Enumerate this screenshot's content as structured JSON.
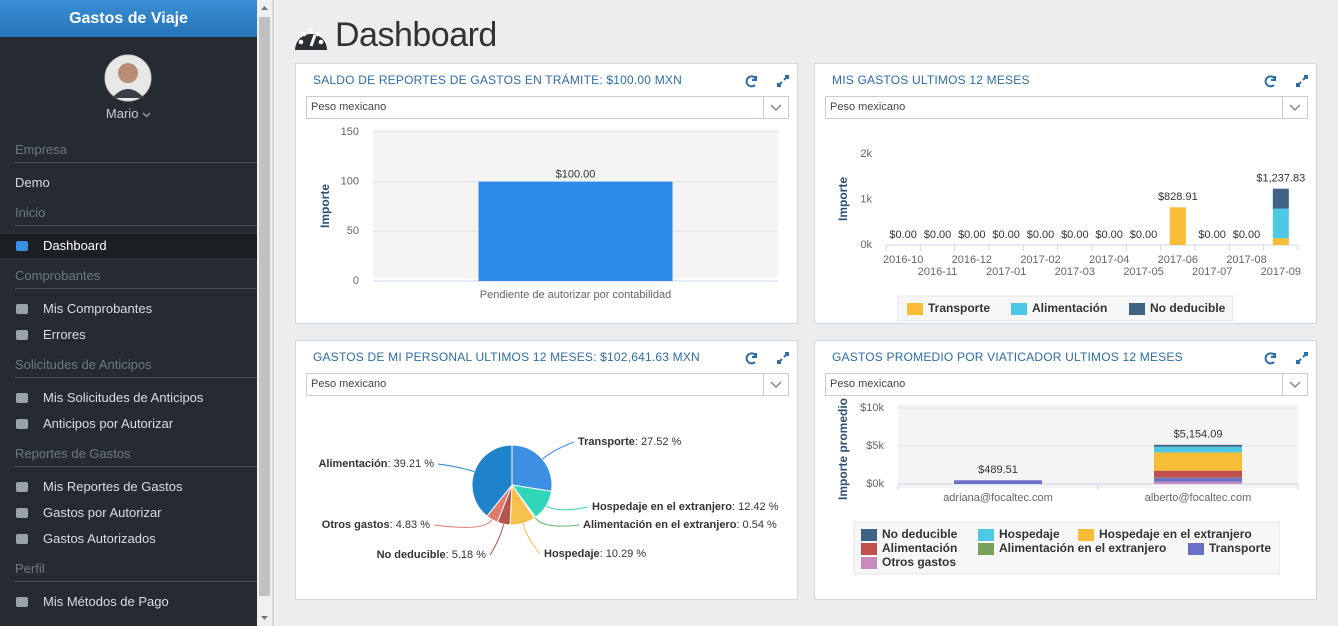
{
  "sidebar": {
    "app_title": "Gastos de Viaje",
    "user": "Mario",
    "sections": [
      {
        "header": "Empresa",
        "items": [
          "Demo"
        ]
      },
      {
        "header": "Inicio",
        "items": [
          "Dashboard"
        ]
      },
      {
        "header": "Comprobantes",
        "items": [
          "Mis Comprobantes",
          "Errores"
        ]
      },
      {
        "header": "Solicitudes de Anticipos",
        "items": [
          "Mis Solicitudes de Anticipos",
          "Anticipos por Autorizar"
        ]
      },
      {
        "header": "Reportes de Gastos",
        "items": [
          "Mis Reportes de Gastos",
          "Gastos por Autorizar",
          "Gastos Autorizados"
        ]
      },
      {
        "header": "Perfil",
        "items": [
          "Mis Métodos de Pago"
        ]
      }
    ]
  },
  "page_title": "Dashboard",
  "panels": [
    {
      "title": "SALDO DE REPORTES DE GASTOS EN TRÁMITE: $100.00 MXN",
      "currency": "Peso mexicano",
      "chart_data": {
        "type": "bar",
        "ylabel": "Importe",
        "categories": [
          "Pendiente de autorizar por contabilidad"
        ],
        "values": [
          100
        ],
        "value_labels": [
          "$100.00"
        ],
        "color": "#2d8ae8",
        "ylim": [
          0,
          150
        ],
        "yticks": [
          0,
          50,
          100,
          150
        ],
        "grid": true
      }
    },
    {
      "title": "MIS GASTOS ULTIMOS 12 MESES",
      "currency": "Peso mexicano",
      "chart_data": {
        "type": "bar",
        "stacked": true,
        "ylabel": "Importe",
        "categories": [
          "2016-10",
          "2016-11",
          "2016-12",
          "2017-01",
          "2017-02",
          "2017-03",
          "2017-04",
          "2017-05",
          "2017-06",
          "2017-07",
          "2017-08",
          "2017-09"
        ],
        "series": [
          {
            "name": "Transporte",
            "color": "#f7bd36",
            "values": [
              0,
              0,
              0,
              0,
              0,
              0,
              0,
              0,
              828.91,
              0,
              0,
              150
            ]
          },
          {
            "name": "Alimentación",
            "color": "#4fc8e6",
            "values": [
              0,
              0,
              0,
              0,
              0,
              0,
              0,
              0,
              0,
              0,
              0,
              650
            ]
          },
          {
            "name": "No deducible",
            "color": "#3f6384",
            "values": [
              0,
              0,
              0,
              0,
              0,
              0,
              0,
              0,
              0,
              0,
              0,
              437.83
            ]
          }
        ],
        "totals": [
          0,
          0,
          0,
          0,
          0,
          0,
          0,
          0,
          828.91,
          0,
          0,
          1237.83
        ],
        "total_labels": [
          "$0.00",
          "$0.00",
          "$0.00",
          "$0.00",
          "$0.00",
          "$0.00",
          "$0.00",
          "$0.00",
          "$828.91",
          "$0.00",
          "$0.00",
          "$1,237.83"
        ],
        "ylim": [
          0,
          2000
        ],
        "yticks": [
          {
            "value": 0,
            "label": "0k"
          },
          {
            "value": 1000,
            "label": "1k"
          },
          {
            "value": 2000,
            "label": "2k"
          }
        ],
        "grid": false,
        "legend": "bottom"
      }
    },
    {
      "title": "GASTOS DE MI PERSONAL ULTIMOS 12 MESES: $102,641.63 MXN",
      "currency": "Peso mexicano",
      "chart_data": {
        "type": "pie",
        "categories": [
          "Transporte",
          "Hospedaje en el extranjero",
          "Alimentación en el extranjero",
          "Hospedaje",
          "No deducible",
          "Otros gastos",
          "Alimentación"
        ],
        "values": [
          27.52,
          12.42,
          0.54,
          10.29,
          5.18,
          4.83,
          39.21
        ],
        "value_labels": [
          ": 27.52 %",
          ": 12.42 %",
          ": 0.54 %",
          ": 10.29 %",
          ": 5.18 %",
          ": 4.83 %",
          ": 39.21 %"
        ],
        "colors": [
          "#3d8fe3",
          "#30d6b8",
          "#5cb85c",
          "#f5c04b",
          "#b4574a",
          "#e07a6e",
          "#1e83c8"
        ]
      }
    },
    {
      "title": "GASTOS PROMEDIO POR VIATICADOR ULTIMOS 12 MESES",
      "currency": "Peso mexicano",
      "chart_data": {
        "type": "bar",
        "stacked": true,
        "ylabel": "Importe promedio",
        "categories": [
          "adriana@focaltec.com",
          "alberto@focaltec.com"
        ],
        "series": [
          {
            "name": "No deducible",
            "color": "#3f6384",
            "values": [
              0,
              250
            ]
          },
          {
            "name": "Hospedaje",
            "color": "#4fc8e6",
            "values": [
              0,
              750
            ]
          },
          {
            "name": "Hospedaje en el extranjero",
            "color": "#f7bd36",
            "values": [
              0,
              2400
            ]
          },
          {
            "name": "Alimentación",
            "color": "#c0504d",
            "values": [
              0,
              900
            ]
          },
          {
            "name": "Alimentación en el extranjero",
            "color": "#77a05a",
            "values": [
              0,
              50
            ]
          },
          {
            "name": "Transporte",
            "color": "#6a70c4",
            "values": [
              489.51,
              500
            ]
          },
          {
            "name": "Otros gastos",
            "color": "#c98bbb",
            "values": [
              0,
              304.09
            ]
          }
        ],
        "totals": [
          489.51,
          5154.09
        ],
        "total_labels": [
          "$489.51",
          "$5,154.09"
        ],
        "ylim": [
          0,
          10000
        ],
        "yticks": [
          {
            "value": 0,
            "label": "$0k"
          },
          {
            "value": 5000,
            "label": "$5k"
          },
          {
            "value": 10000,
            "label": "$10k"
          }
        ],
        "grid": true,
        "legend": "bottom"
      }
    }
  ]
}
